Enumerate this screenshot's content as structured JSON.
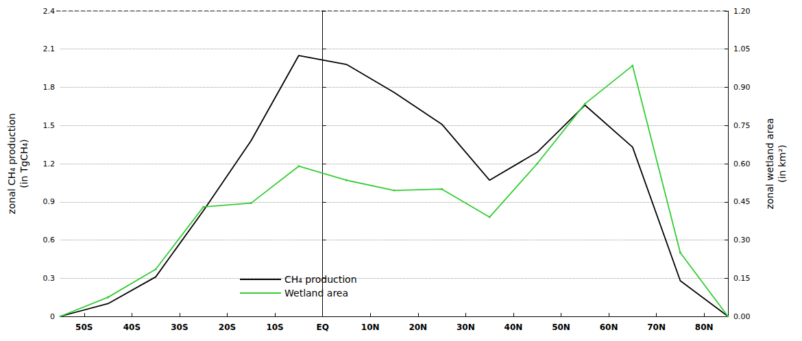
{
  "chart_data": {
    "type": "line",
    "x": [
      -55,
      -45,
      -35,
      -25,
      -15,
      -5,
      5,
      15,
      25,
      35,
      45,
      55,
      65,
      75,
      85
    ],
    "xlim": [
      -55,
      85
    ],
    "xticks": [
      {
        "value": -50,
        "label": "50S"
      },
      {
        "value": -40,
        "label": "40S"
      },
      {
        "value": -30,
        "label": "30S"
      },
      {
        "value": -20,
        "label": "20S"
      },
      {
        "value": -10,
        "label": "10S"
      },
      {
        "value": 0,
        "label": "EQ"
      },
      {
        "value": 10,
        "label": "10N"
      },
      {
        "value": 20,
        "label": "20N"
      },
      {
        "value": 30,
        "label": "30N"
      },
      {
        "value": 40,
        "label": "40N"
      },
      {
        "value": 50,
        "label": "50N"
      },
      {
        "value": 60,
        "label": "60N"
      },
      {
        "value": 70,
        "label": "70N"
      },
      {
        "value": 80,
        "label": "80N"
      }
    ],
    "ylabel": "zonal CH₄ production\n(in TgCH₄)",
    "ylim": [
      0,
      2.4
    ],
    "yticks": [
      0,
      0.3,
      0.6,
      0.9,
      1.2,
      1.5,
      1.8,
      2.1,
      2.4
    ],
    "y2label": "zonal wetland area\n(in km²)",
    "y2lim": [
      0,
      1.2
    ],
    "y2ticks": [
      {
        "value": 0,
        "label": "0.00"
      },
      {
        "value": 0.15,
        "label": "0.15"
      },
      {
        "value": 0.3,
        "label": "0.30"
      },
      {
        "value": 0.45,
        "label": "0.45"
      },
      {
        "value": 0.6,
        "label": "0.60"
      },
      {
        "value": 0.75,
        "label": "0.75"
      },
      {
        "value": 0.9,
        "label": "0.90"
      },
      {
        "value": 1.05,
        "label": "1.05"
      },
      {
        "value": 1.2,
        "label": "1.20"
      }
    ],
    "grid": true,
    "legend": "lower center",
    "series": [
      {
        "name": "CH₄ production",
        "color": "#000000",
        "marker": "none",
        "axis": "y",
        "values": [
          0,
          0.1,
          0.31,
          0.83,
          1.38,
          2.05,
          1.98,
          1.76,
          1.51,
          1.07,
          1.29,
          1.66,
          1.33,
          0.28,
          0
        ]
      },
      {
        "name": "Wetland area",
        "color": "#33cc33",
        "marker": "circle",
        "axis": "y2",
        "values": [
          0,
          0.075,
          0.185,
          0.43,
          0.445,
          0.59,
          0.535,
          0.495,
          0.5,
          0.39,
          0.6,
          0.835,
          0.985,
          0.25,
          0
        ]
      }
    ]
  }
}
